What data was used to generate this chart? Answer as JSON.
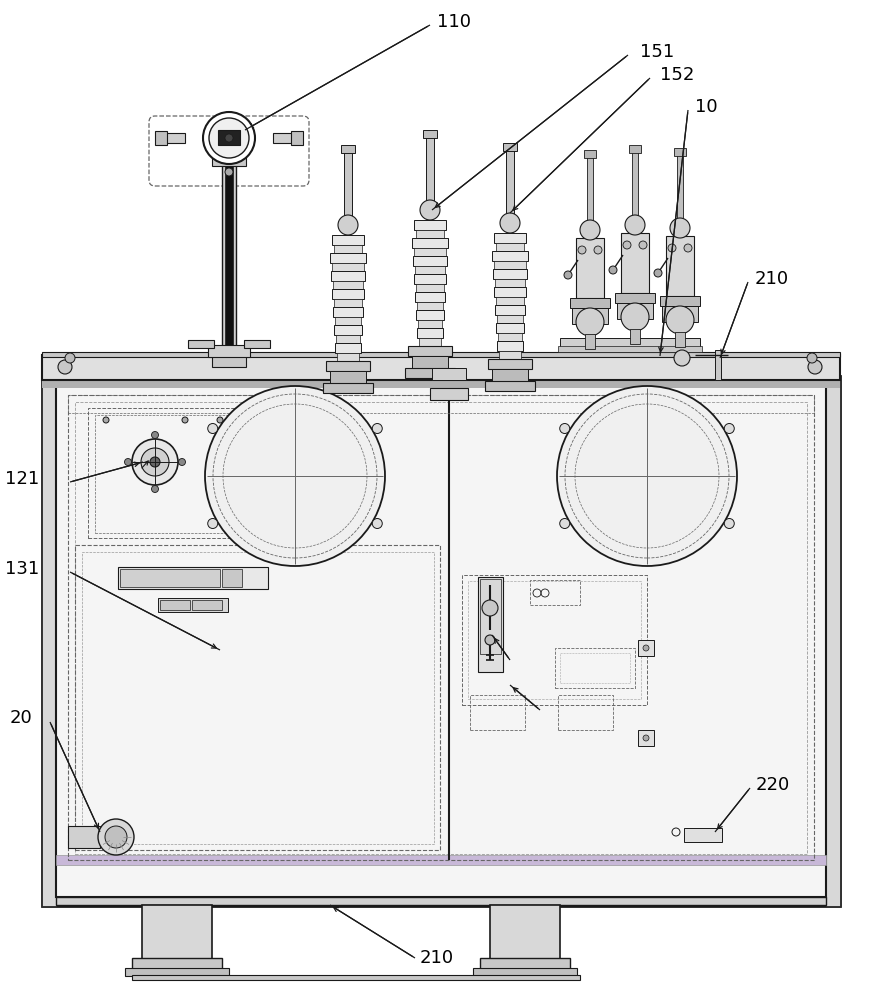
{
  "bg_color": "#ffffff",
  "lc": "#1a1a1a",
  "dc": "#666666",
  "gray1": "#d8d8d8",
  "gray2": "#c0c0c0",
  "gray3": "#e8e8e8",
  "purple_bar": "#c8c0d8",
  "figsize": [
    8.82,
    10.0
  ],
  "dpi": 100
}
